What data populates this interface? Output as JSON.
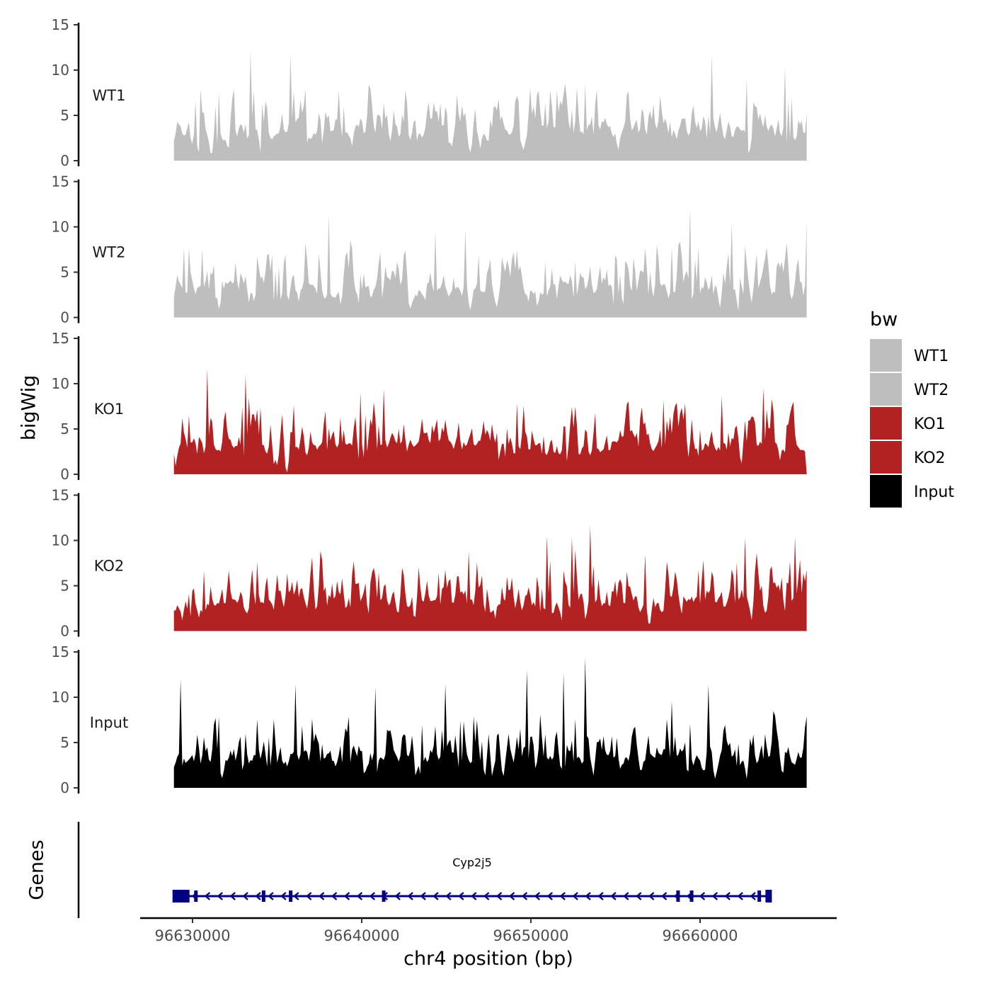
{
  "chart_data": {
    "type": "area",
    "ylabel": "bigWig",
    "xlabel": "chr4 position (bp)",
    "xlim": [
      96626000,
      96666000
    ],
    "x_ticks": [
      96630000,
      96640000,
      96650000,
      96660000
    ],
    "x_tick_labels": [
      "96630000",
      "96640000",
      "96650000",
      "96660000"
    ],
    "ylim": [
      0,
      15
    ],
    "y_ticks": [
      0,
      5,
      10,
      15
    ],
    "y_tick_labels": [
      "0",
      "5",
      "10",
      "15"
    ],
    "data_range": [
      96628900,
      96666300
    ],
    "legend": {
      "title": "bw",
      "position": "right",
      "entries": [
        {
          "label": "WT1",
          "color": "#bebebe"
        },
        {
          "label": "WT2",
          "color": "#bebebe"
        },
        {
          "label": "KO1",
          "color": "#b22222"
        },
        {
          "label": "KO2",
          "color": "#b22222"
        },
        {
          "label": "Input",
          "color": "#000000"
        }
      ]
    },
    "series": [
      {
        "name": "WT1",
        "color": "#bebebe",
        "seed": 11,
        "peaks": [
          [
            96633400,
            12.1
          ],
          [
            96635800,
            11.8
          ],
          [
            96660700,
            11.6
          ],
          [
            96665000,
            10.3
          ],
          [
            96631600,
            7.5
          ],
          [
            96653200,
            8.4
          ],
          [
            96662800,
            9.1
          ]
        ]
      },
      {
        "name": "WT2",
        "color": "#bebebe",
        "seed": 23,
        "peaks": [
          [
            96634900,
            5.1
          ],
          [
            96638100,
            11.4
          ],
          [
            96644400,
            9.5
          ],
          [
            96646100,
            9.6
          ],
          [
            96659400,
            12.1
          ],
          [
            96661900,
            10.4
          ],
          [
            96652600,
            6.2
          ]
        ]
      },
      {
        "name": "KO1",
        "color": "#b22222",
        "seed": 37,
        "peaks": [
          [
            96630900,
            11.6
          ],
          [
            96633100,
            11.0
          ],
          [
            96639900,
            9.0
          ],
          [
            96641300,
            9.4
          ],
          [
            96661300,
            8.6
          ],
          [
            96663700,
            9.5
          ],
          [
            96657800,
            8.2
          ]
        ]
      },
      {
        "name": "KO2",
        "color": "#b22222",
        "seed": 53,
        "peaks": [
          [
            96650900,
            10.5
          ],
          [
            96653500,
            11.7
          ],
          [
            96652400,
            10.4
          ],
          [
            96662700,
            10.3
          ],
          [
            96665600,
            10.4
          ],
          [
            96646300,
            8.8
          ],
          [
            96656800,
            8.5
          ]
        ]
      },
      {
        "name": "Input",
        "color": "#000000",
        "seed": 71,
        "peaks": [
          [
            96629300,
            12.0
          ],
          [
            96636100,
            11.4
          ],
          [
            96640800,
            11.1
          ],
          [
            96649800,
            13.0
          ],
          [
            96651900,
            12.7
          ],
          [
            96653200,
            14.3
          ],
          [
            96644900,
            11.4
          ],
          [
            96660500,
            11.4
          ],
          [
            96658300,
            9.6
          ]
        ]
      }
    ],
    "genes": {
      "label": "Genes",
      "name": "Cyp2j5",
      "start": 96628900,
      "end": 96664200,
      "strand": "-",
      "color": "#000080",
      "exons": [
        96629100,
        96629700,
        96630200,
        96634200,
        96635800,
        96641300,
        96658700,
        96659500,
        96663500,
        96664000
      ]
    }
  }
}
